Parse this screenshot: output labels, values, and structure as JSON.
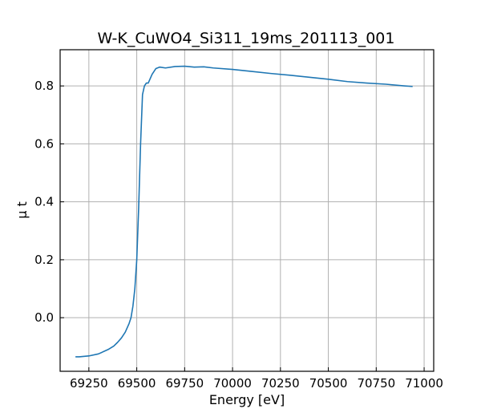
{
  "chart_data": {
    "type": "line",
    "title": "W-K_CuWO4_Si311_19ms_201113_001",
    "xlabel": "Energy [eV]",
    "ylabel": "μ t",
    "xlim": [
      69100,
      71050
    ],
    "ylim": [
      -0.185,
      0.925
    ],
    "xticks": [
      69250,
      69500,
      69750,
      70000,
      70250,
      70500,
      70750,
      71000
    ],
    "yticks": [
      0.0,
      0.2,
      0.4,
      0.6,
      0.8
    ],
    "xtick_labels": [
      "69250",
      "69500",
      "69750",
      "70000",
      "70250",
      "70500",
      "70750",
      "71000"
    ],
    "ytick_labels": [
      "0.0",
      "0.2",
      "0.4",
      "0.6",
      "0.8"
    ],
    "grid": true,
    "color": "#1f77b4",
    "series": [
      {
        "x": [
          69180,
          69200,
          69250,
          69300,
          69350,
          69380,
          69400,
          69420,
          69440,
          69460,
          69470,
          69480,
          69490,
          69500,
          69510,
          69520,
          69530,
          69540,
          69550,
          69560,
          69580,
          69600,
          69620,
          69650,
          69700,
          69750,
          69800,
          69850,
          69900,
          70000,
          70100,
          70200,
          70300,
          70400,
          70500,
          70600,
          70700,
          70800,
          70900,
          70940
        ],
        "y": [
          -0.135,
          -0.135,
          -0.132,
          -0.125,
          -0.11,
          -0.098,
          -0.085,
          -0.07,
          -0.05,
          -0.02,
          0.0,
          0.04,
          0.1,
          0.2,
          0.38,
          0.6,
          0.77,
          0.8,
          0.81,
          0.81,
          0.84,
          0.86,
          0.865,
          0.862,
          0.867,
          0.868,
          0.865,
          0.866,
          0.862,
          0.857,
          0.85,
          0.843,
          0.837,
          0.83,
          0.823,
          0.815,
          0.81,
          0.806,
          0.8,
          0.798
        ]
      }
    ]
  }
}
